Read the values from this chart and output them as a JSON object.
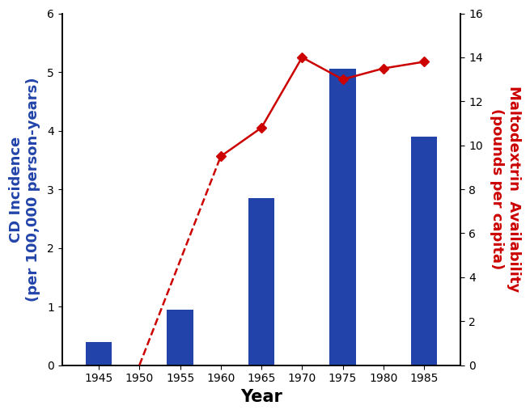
{
  "bar_years": [
    1945,
    1955,
    1965,
    1975,
    1985
  ],
  "bar_values": [
    0.4,
    0.95,
    2.85,
    5.05,
    3.9
  ],
  "bar_color": "#2244AA",
  "line_years_dashed": [
    1950,
    1960
  ],
  "line_values_dashed": [
    0.0,
    9.5
  ],
  "line_years_solid": [
    1960,
    1965,
    1970,
    1975,
    1980,
    1985
  ],
  "line_values_solid": [
    9.5,
    10.8,
    14.0,
    13.0,
    13.5,
    13.8
  ],
  "line_color": "#CC0000",
  "xlabel": "Year",
  "ylabel_left_line1": "CD Incidence",
  "ylabel_left_line2": "(per 100,000 person-years)",
  "ylabel_right_line1": "Maltodextrin  Availability",
  "ylabel_right_line2": "(pounds per capita)",
  "xlim_left": 1940.5,
  "xlim_right": 1989.5,
  "ylim_left": [
    0,
    6
  ],
  "ylim_right": [
    0,
    16
  ],
  "xticks": [
    1945,
    1950,
    1955,
    1960,
    1965,
    1970,
    1975,
    1980,
    1985
  ],
  "yticks_left": [
    0,
    1,
    2,
    3,
    4,
    5,
    6
  ],
  "yticks_right": [
    0,
    2,
    4,
    6,
    8,
    10,
    12,
    14,
    16
  ],
  "bar_width": 3.2
}
